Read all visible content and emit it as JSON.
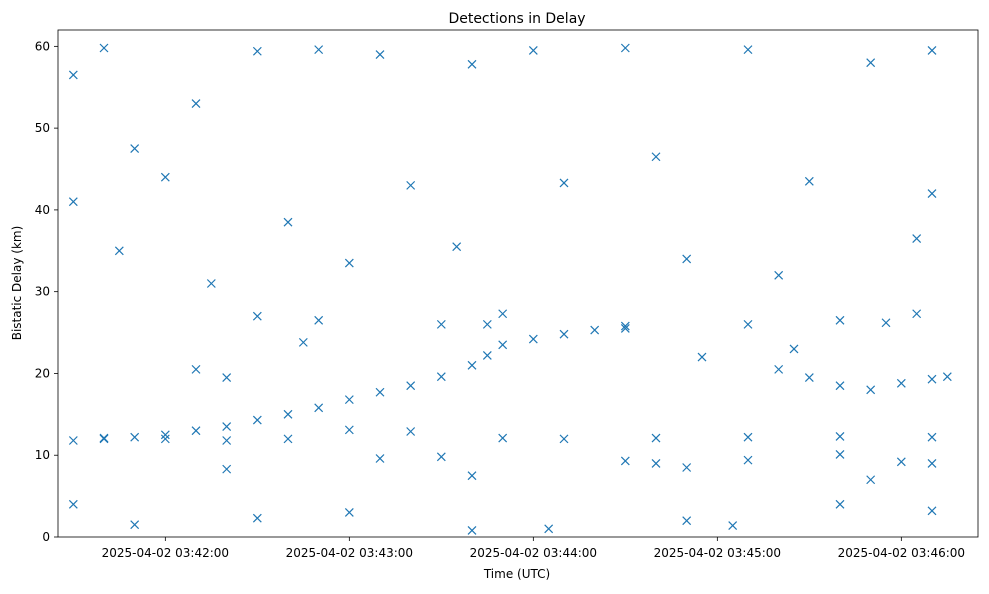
{
  "chart_data": {
    "type": "scatter",
    "title": "Detections in Delay",
    "xlabel": "Time (UTC)",
    "ylabel": "Bistatic Delay (km)",
    "marker": "x",
    "color": "#1f77b4",
    "grid": false,
    "legend": "none",
    "x_axis": {
      "type": "time",
      "start": "2025-04-02 03:41:25",
      "end": "2025-04-02 03:46:25",
      "ticks": [
        "2025-04-02 03:42:00",
        "2025-04-02 03:43:00",
        "2025-04-02 03:44:00",
        "2025-04-02 03:45:00",
        "2025-04-02 03:46:00"
      ]
    },
    "ylim": [
      0,
      62
    ],
    "y_ticks": [
      0,
      10,
      20,
      30,
      40,
      50,
      60
    ],
    "series": [
      {
        "points": [
          [
            "2025-04-02 03:41:30",
            11.8
          ],
          [
            "2025-04-02 03:41:40",
            12.0
          ],
          [
            "2025-04-02 03:41:50",
            12.2
          ],
          [
            "2025-04-02 03:42:00",
            12.5
          ],
          [
            "2025-04-02 03:42:10",
            13.0
          ],
          [
            "2025-04-02 03:42:20",
            13.5
          ],
          [
            "2025-04-02 03:42:30",
            14.3
          ],
          [
            "2025-04-02 03:42:40",
            15.0
          ],
          [
            "2025-04-02 03:42:50",
            15.8
          ],
          [
            "2025-04-02 03:43:00",
            16.8
          ],
          [
            "2025-04-02 03:43:10",
            17.7
          ],
          [
            "2025-04-02 03:43:20",
            18.5
          ],
          [
            "2025-04-02 03:43:30",
            19.6
          ],
          [
            "2025-04-02 03:43:40",
            21.0
          ],
          [
            "2025-04-02 03:43:45",
            22.2
          ],
          [
            "2025-04-02 03:43:50",
            23.5
          ],
          [
            "2025-04-02 03:44:00",
            24.2
          ],
          [
            "2025-04-02 03:44:10",
            24.8
          ],
          [
            "2025-04-02 03:44:20",
            25.3
          ],
          [
            "2025-04-02 03:44:30",
            25.5
          ],
          [
            "2025-04-02 03:45:20",
            20.5
          ],
          [
            "2025-04-02 03:45:30",
            19.5
          ],
          [
            "2025-04-02 03:45:40",
            18.5
          ],
          [
            "2025-04-02 03:45:50",
            18.0
          ],
          [
            "2025-04-02 03:46:00",
            18.8
          ],
          [
            "2025-04-02 03:46:10",
            19.3
          ],
          [
            "2025-04-02 03:46:15",
            19.6
          ],
          [
            "2025-04-02 03:41:40",
            12.1
          ],
          [
            "2025-04-02 03:42:00",
            12.0
          ],
          [
            "2025-04-02 03:42:20",
            11.8
          ],
          [
            "2025-04-02 03:42:40",
            12.0
          ],
          [
            "2025-04-02 03:43:00",
            13.1
          ],
          [
            "2025-04-02 03:43:20",
            12.9
          ],
          [
            "2025-04-02 03:43:50",
            12.1
          ],
          [
            "2025-04-02 03:44:10",
            12.0
          ],
          [
            "2025-04-02 03:44:40",
            12.1
          ],
          [
            "2025-04-02 03:45:10",
            12.2
          ],
          [
            "2025-04-02 03:45:40",
            12.3
          ],
          [
            "2025-04-02 03:46:10",
            12.2
          ],
          [
            "2025-04-02 03:43:10",
            9.6
          ],
          [
            "2025-04-02 03:43:30",
            9.8
          ],
          [
            "2025-04-02 03:44:30",
            9.3
          ],
          [
            "2025-04-02 03:44:40",
            9.0
          ],
          [
            "2025-04-02 03:45:10",
            9.4
          ],
          [
            "2025-04-02 03:45:40",
            10.1
          ],
          [
            "2025-04-02 03:46:00",
            9.2
          ],
          [
            "2025-04-02 03:46:10",
            9.0
          ],
          [
            "2025-04-02 03:42:10",
            20.5
          ],
          [
            "2025-04-02 03:42:20",
            19.5
          ],
          [
            "2025-04-02 03:42:30",
            27.0
          ],
          [
            "2025-04-02 03:42:50",
            26.5
          ],
          [
            "2025-04-02 03:43:30",
            26.0
          ],
          [
            "2025-04-02 03:43:50",
            27.3
          ],
          [
            "2025-04-02 03:44:30",
            25.8
          ],
          [
            "2025-04-02 03:45:10",
            26.0
          ],
          [
            "2025-04-02 03:45:40",
            26.5
          ],
          [
            "2025-04-02 03:45:55",
            26.2
          ],
          [
            "2025-04-02 03:46:05",
            27.3
          ],
          [
            "2025-04-02 03:41:30",
            56.5
          ],
          [
            "2025-04-02 03:41:40",
            59.8
          ],
          [
            "2025-04-02 03:41:50",
            47.5
          ],
          [
            "2025-04-02 03:42:10",
            53.0
          ],
          [
            "2025-04-02 03:42:30",
            59.4
          ],
          [
            "2025-04-02 03:42:50",
            59.6
          ],
          [
            "2025-04-02 03:43:10",
            59.0
          ],
          [
            "2025-04-02 03:43:40",
            57.8
          ],
          [
            "2025-04-02 03:44:00",
            59.5
          ],
          [
            "2025-04-02 03:44:30",
            59.8
          ],
          [
            "2025-04-02 03:45:10",
            59.6
          ],
          [
            "2025-04-02 03:45:50",
            58.0
          ],
          [
            "2025-04-02 03:46:10",
            59.5
          ],
          [
            "2025-04-02 03:41:30",
            41.0
          ],
          [
            "2025-04-02 03:42:00",
            44.0
          ],
          [
            "2025-04-02 03:42:40",
            38.5
          ],
          [
            "2025-04-02 03:43:20",
            43.0
          ],
          [
            "2025-04-02 03:44:10",
            43.3
          ],
          [
            "2025-04-02 03:44:40",
            46.5
          ],
          [
            "2025-04-02 03:45:30",
            43.5
          ],
          [
            "2025-04-02 03:46:10",
            42.0
          ],
          [
            "2025-04-02 03:41:45",
            35.0
          ],
          [
            "2025-04-02 03:42:15",
            31.0
          ],
          [
            "2025-04-02 03:43:00",
            33.5
          ],
          [
            "2025-04-02 03:43:35",
            35.5
          ],
          [
            "2025-04-02 03:44:50",
            34.0
          ],
          [
            "2025-04-02 03:45:20",
            32.0
          ],
          [
            "2025-04-02 03:46:05",
            36.5
          ],
          [
            "2025-04-02 03:41:30",
            4.0
          ],
          [
            "2025-04-02 03:41:50",
            1.5
          ],
          [
            "2025-04-02 03:42:30",
            2.3
          ],
          [
            "2025-04-02 03:43:00",
            3.0
          ],
          [
            "2025-04-02 03:43:40",
            0.8
          ],
          [
            "2025-04-02 03:44:05",
            1.0
          ],
          [
            "2025-04-02 03:44:50",
            2.0
          ],
          [
            "2025-04-02 03:45:05",
            1.4
          ],
          [
            "2025-04-02 03:45:40",
            4.0
          ],
          [
            "2025-04-02 03:46:10",
            3.2
          ],
          [
            "2025-04-02 03:42:20",
            8.3
          ],
          [
            "2025-04-02 03:43:40",
            7.5
          ],
          [
            "2025-04-02 03:44:50",
            8.5
          ],
          [
            "2025-04-02 03:45:50",
            7.0
          ],
          [
            "2025-04-02 03:42:45",
            23.8
          ],
          [
            "2025-04-02 03:43:45",
            26.0
          ],
          [
            "2025-04-02 03:44:55",
            22.0
          ],
          [
            "2025-04-02 03:45:25",
            23.0
          ]
        ]
      }
    ]
  }
}
